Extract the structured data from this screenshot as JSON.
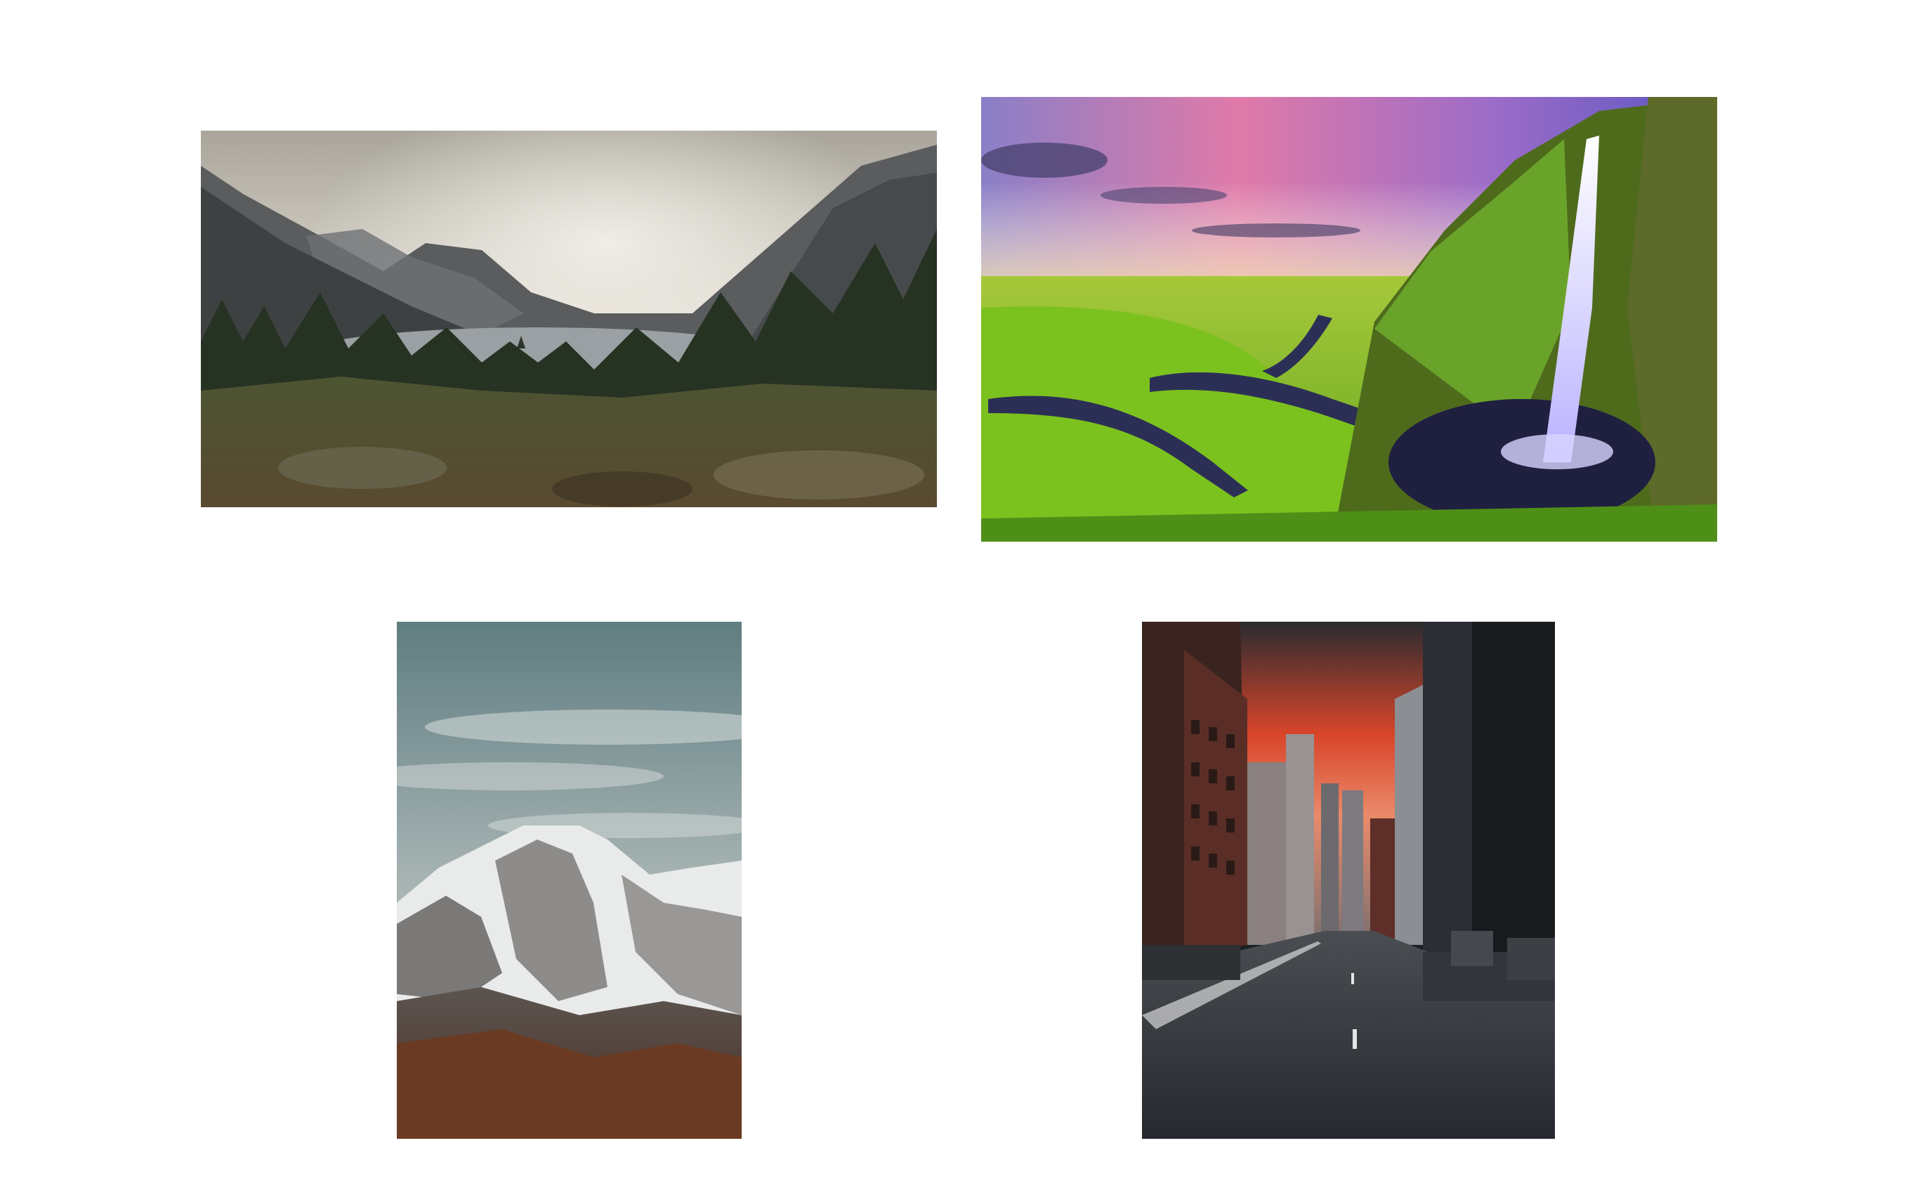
{
  "gallery": {
    "items": [
      {
        "id": "lake",
        "subject": "mountain-lake-landscape"
      },
      {
        "id": "falls",
        "subject": "waterfall-green-valley-sunset"
      },
      {
        "id": "mountain",
        "subject": "snowy-mountain-peak"
      },
      {
        "id": "city",
        "subject": "city-street-red-sky"
      }
    ]
  },
  "colors": {
    "background": "#ffffff",
    "lake_sky": "#d8d6cf",
    "falls_grass": "#7fbf1f",
    "falls_sky": "#c86ab0",
    "mountain_sky": "#7d9597",
    "city_sky": "#d9452a"
  }
}
